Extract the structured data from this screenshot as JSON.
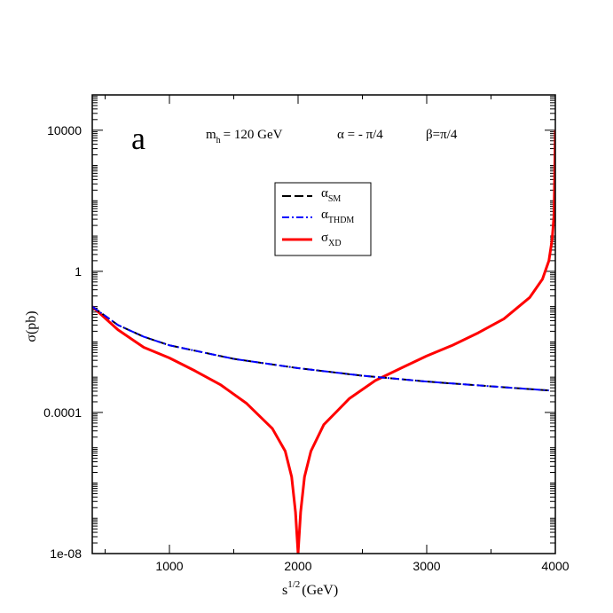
{
  "chart_data": {
    "type": "line",
    "panel_label": "a",
    "annotations": {
      "mh": "m",
      "mh_sub": "h",
      "mh_value": "= 120 GeV",
      "alpha": "α = - π/4",
      "beta": "β=π/4"
    },
    "xlabel": {
      "base": "s",
      "sup": "1/2",
      "unit": "(GeV)"
    },
    "ylabel": "σ(pb)",
    "xlim": [
      400,
      4000
    ],
    "ylim": [
      1e-08,
      100000
    ],
    "yscale": "log",
    "xticks": [
      1000,
      2000,
      3000,
      4000
    ],
    "xtick_labels": [
      "1000",
      "2000",
      "3000",
      "4000"
    ],
    "yticks": [
      1e-08,
      0.0001,
      1,
      10000
    ],
    "ytick_labels": [
      "1e-08",
      "0.0001",
      "1",
      "10000"
    ],
    "legend": {
      "position": "upper-center",
      "entries": [
        {
          "base": "α",
          "sub": "SM",
          "color": "#000000",
          "dash": "10,4"
        },
        {
          "base": "α",
          "sub": "THDM",
          "color": "#0000ff",
          "dash": "8,3,2,3"
        },
        {
          "base": "σ",
          "sub": "XD",
          "color": "#ff0000",
          "dash": ""
        }
      ]
    },
    "series": [
      {
        "name": "α_SM",
        "color": "#000000",
        "style": "dashed",
        "x": [
          400,
          600,
          800,
          1000,
          1500,
          2000,
          2500,
          3000,
          3500,
          3950
        ],
        "y": [
          0.1,
          0.03,
          0.014,
          0.008,
          0.0033,
          0.0018,
          0.0011,
          0.00075,
          0.00055,
          0.00042
        ]
      },
      {
        "name": "α_THDM",
        "color": "#0000ff",
        "style": "dash-dot",
        "x": [
          400,
          600,
          800,
          1000,
          1500,
          2000,
          2500,
          3000,
          3500,
          3950
        ],
        "y": [
          0.1,
          0.03,
          0.014,
          0.008,
          0.0033,
          0.0018,
          0.0011,
          0.00075,
          0.00055,
          0.00042
        ]
      },
      {
        "name": "σ_XD",
        "color": "#ff0000",
        "style": "solid",
        "x": [
          400,
          600,
          800,
          1000,
          1200,
          1400,
          1600,
          1800,
          1900,
          1950,
          1980,
          1995,
          2000,
          2005,
          2020,
          2050,
          2100,
          2200,
          2400,
          2600,
          2800,
          3000,
          3200,
          3400,
          3600,
          3800,
          3900,
          3950,
          3975,
          3990,
          4000
        ],
        "y": [
          0.1,
          0.022,
          0.007,
          0.0035,
          0.0015,
          0.0006,
          0.00018,
          3.5e-05,
          8e-06,
          1.5e-06,
          1.5e-07,
          2e-08,
          1e-08,
          2e-08,
          1.5e-07,
          1.5e-06,
          8e-06,
          4.5e-05,
          0.00025,
          0.0008,
          0.0018,
          0.004,
          0.008,
          0.018,
          0.045,
          0.18,
          0.6,
          2,
          8,
          40,
          10000
        ]
      }
    ]
  }
}
